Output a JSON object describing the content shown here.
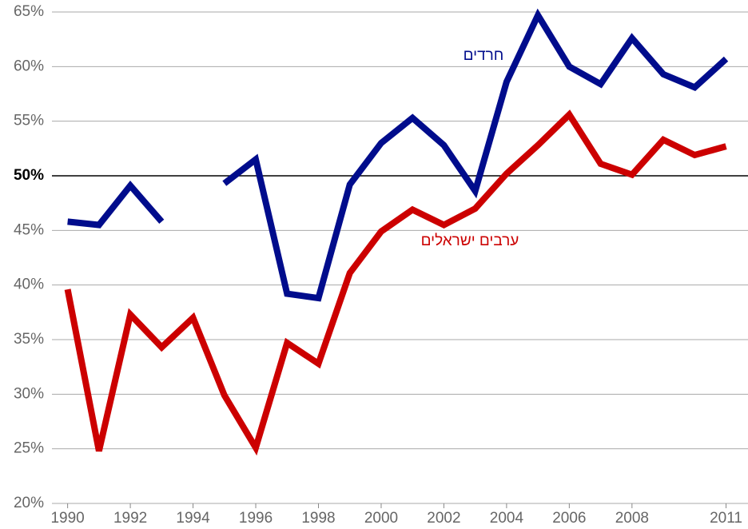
{
  "chart_data": {
    "type": "line",
    "x": [
      1990,
      1991,
      1992,
      1993,
      1994,
      1995,
      1996,
      1997,
      1998,
      1999,
      2000,
      2001,
      2002,
      2003,
      2004,
      2005,
      2006,
      2007,
      2008,
      2009,
      2010,
      2011
    ],
    "series": [
      {
        "name": "חרדים",
        "color": "#000c8c",
        "values": [
          45.8,
          45.5,
          49.1,
          45.8,
          null,
          49.3,
          51.5,
          39.2,
          38.8,
          49.2,
          53.0,
          55.3,
          52.8,
          48.6,
          58.6,
          64.7,
          60.0,
          58.4,
          62.6,
          59.3,
          58.1,
          60.7
        ]
      },
      {
        "name": "ערבים ישראלים",
        "color": "#cc0000",
        "values": [
          39.6,
          24.8,
          37.3,
          34.3,
          37.0,
          29.9,
          25.1,
          34.7,
          32.8,
          41.1,
          44.9,
          46.9,
          45.5,
          47.0,
          50.2,
          52.8,
          55.6,
          51.1,
          50.1,
          53.3,
          51.9,
          52.7
        ]
      }
    ],
    "xlim": [
      1989.5,
      2011.7
    ],
    "xticks": [
      1990,
      1992,
      1994,
      1996,
      1998,
      2000,
      2002,
      2004,
      2006,
      2008,
      2011
    ],
    "ylim": [
      20,
      65
    ],
    "yticks": [
      {
        "value": 20,
        "label": "20%"
      },
      {
        "value": 25,
        "label": "25%"
      },
      {
        "value": 30,
        "label": "30%"
      },
      {
        "value": 35,
        "label": "35%"
      },
      {
        "value": 40,
        "label": "40%"
      },
      {
        "value": 45,
        "label": "45%"
      },
      {
        "value": 50,
        "label": "50%"
      },
      {
        "value": 55,
        "label": "55%"
      },
      {
        "value": 60,
        "label": "60%"
      },
      {
        "value": 65,
        "label": "65%"
      }
    ],
    "reference_line": 50,
    "grid": true
  }
}
